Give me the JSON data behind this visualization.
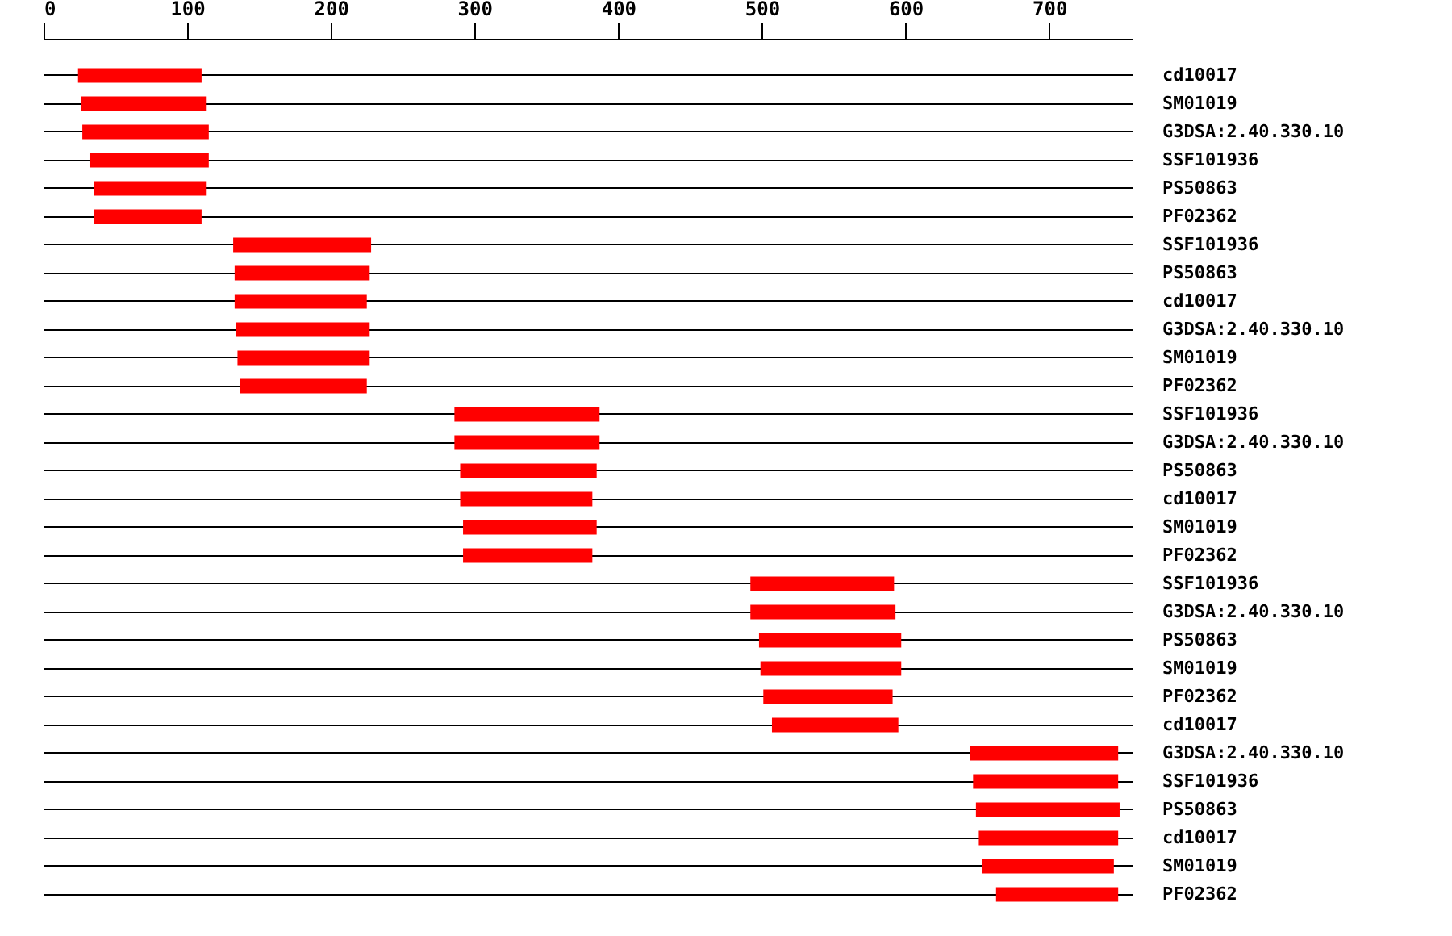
{
  "chart_data": {
    "type": "bar",
    "orientation": "horizontal",
    "grid": "y",
    "categories": [
      "cd10017",
      "SM01019",
      "G3DSA:2.40.330.10",
      "SSF101936",
      "PS50863",
      "PF02362",
      "SSF101936",
      "PS50863",
      "cd10017",
      "G3DSA:2.40.330.10",
      "SM01019",
      "PF02362",
      "SSF101936",
      "G3DSA:2.40.330.10",
      "PS50863",
      "cd10017",
      "SM01019",
      "PF02362",
      "SSF101936",
      "G3DSA:2.40.330.10",
      "PS50863",
      "SM01019",
      "PF02362",
      "cd10017",
      "G3DSA:2.40.330.10",
      "SSF101936",
      "PS50863",
      "cd10017",
      "SM01019",
      "PF02362"
    ],
    "series": [
      {
        "color": "#ff0000",
        "base": [
          24,
          26,
          27,
          32,
          35,
          35,
          132,
          133,
          133,
          134,
          135,
          137,
          286,
          286,
          290,
          290,
          292,
          292,
          492,
          492,
          498,
          499,
          501,
          507,
          645,
          647,
          649,
          651,
          653,
          663
        ],
        "values": [
          86,
          87,
          88,
          83,
          78,
          75,
          96,
          94,
          92,
          93,
          92,
          88,
          101,
          101,
          95,
          92,
          93,
          90,
          100,
          101,
          99,
          98,
          90,
          88,
          103,
          101,
          100,
          97,
          92,
          85
        ]
      }
    ],
    "xlim": [
      0,
      758
    ],
    "xticks": [
      0,
      100,
      200,
      300,
      400,
      500,
      600,
      700
    ]
  }
}
